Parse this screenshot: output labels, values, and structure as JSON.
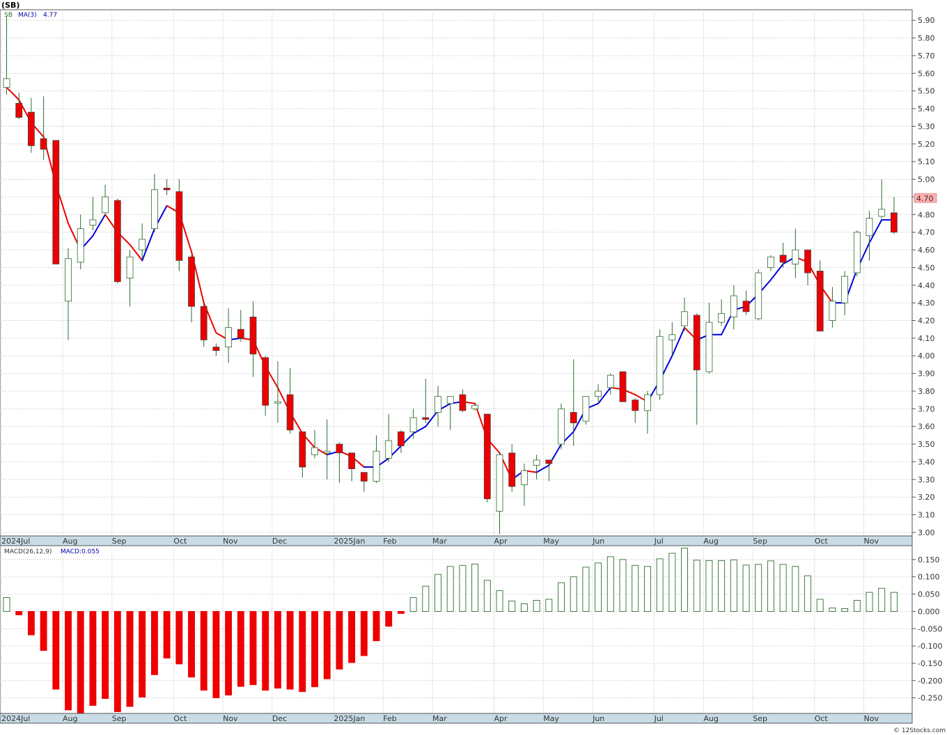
{
  "header": {
    "symbol": "(SB)",
    "legend_symbol": "SB",
    "legend_ma_label": "MA(3)",
    "legend_ma_value": "4.77",
    "last_price_tag": "4.70",
    "macd_label": "MACD(26,12,9)",
    "macd_value_label": "MACD:0.055",
    "footer": "© 12Stocks.com"
  },
  "colors": {
    "up_candle_fill": "#ffffff",
    "up_candle_border": "#2e6b2e",
    "down_candle_fill": "#ee0000",
    "ma_rising": "#0000dd",
    "ma_falling": "#ee0000",
    "macd_positive": "#2e6b2e",
    "macd_negative": "#ee0000",
    "price_tag_bg": "#ffb0b0",
    "axis_bar": "#c8dce6"
  },
  "chart_data": [
    {
      "type": "candlestick",
      "title": "(SB)",
      "ylim": [
        2.98,
        5.96
      ],
      "y_ticks": [
        "3.00",
        "3.10",
        "3.20",
        "3.30",
        "3.40",
        "3.50",
        "3.60",
        "3.70",
        "3.80",
        "3.90",
        "4.00",
        "4.10",
        "4.20",
        "4.30",
        "4.40",
        "4.50",
        "4.60",
        "4.70",
        "4.80",
        "4.90",
        "5.00",
        "5.10",
        "5.20",
        "5.30",
        "5.40",
        "5.50",
        "5.60",
        "5.70",
        "5.80",
        "5.90"
      ],
      "x_labels": [
        {
          "label": "2024Jul",
          "week": 0
        },
        {
          "label": "Aug",
          "week": 5
        },
        {
          "label": "Sep",
          "week": 9
        },
        {
          "label": "Oct",
          "week": 14
        },
        {
          "label": "Nov",
          "week": 18
        },
        {
          "label": "Dec",
          "week": 22
        },
        {
          "label": "2025Jan",
          "week": 27
        },
        {
          "label": "Feb",
          "week": 31
        },
        {
          "label": "Mar",
          "week": 35
        },
        {
          "label": "Apr",
          "week": 40
        },
        {
          "label": "May",
          "week": 44
        },
        {
          "label": "Jun",
          "week": 48
        },
        {
          "label": "Jul",
          "week": 53
        },
        {
          "label": "Aug",
          "week": 57
        },
        {
          "label": "Sep",
          "week": 61
        },
        {
          "label": "Oct",
          "week": 66
        },
        {
          "label": "Nov",
          "week": 70
        }
      ],
      "candles": [
        {
          "o": 5.52,
          "h": 5.92,
          "l": 5.48,
          "c": 5.57
        },
        {
          "o": 5.43,
          "h": 5.49,
          "l": 5.34,
          "c": 5.35
        },
        {
          "o": 5.38,
          "h": 5.46,
          "l": 5.15,
          "c": 5.19
        },
        {
          "o": 5.23,
          "h": 5.47,
          "l": 5.11,
          "c": 5.17
        },
        {
          "o": 5.22,
          "h": 5.22,
          "l": 4.52,
          "c": 4.52
        },
        {
          "o": 4.31,
          "h": 4.61,
          "l": 4.09,
          "c": 4.55
        },
        {
          "o": 4.53,
          "h": 4.8,
          "l": 4.49,
          "c": 4.72
        },
        {
          "o": 4.74,
          "h": 4.9,
          "l": 4.71,
          "c": 4.77
        },
        {
          "o": 4.81,
          "h": 4.97,
          "l": 4.8,
          "c": 4.9
        },
        {
          "o": 4.88,
          "h": 4.89,
          "l": 4.41,
          "c": 4.42
        },
        {
          "o": 4.44,
          "h": 4.6,
          "l": 4.28,
          "c": 4.56
        },
        {
          "o": 4.6,
          "h": 4.75,
          "l": 4.55,
          "c": 4.66
        },
        {
          "o": 4.72,
          "h": 5.03,
          "l": 4.7,
          "c": 4.94
        },
        {
          "o": 4.95,
          "h": 5.0,
          "l": 4.91,
          "c": 4.94
        },
        {
          "o": 4.93,
          "h": 5.0,
          "l": 4.48,
          "c": 4.54
        },
        {
          "o": 4.56,
          "h": 4.57,
          "l": 4.19,
          "c": 4.28
        },
        {
          "o": 4.28,
          "h": 4.3,
          "l": 4.05,
          "c": 4.09
        },
        {
          "o": 4.05,
          "h": 4.07,
          "l": 4.0,
          "c": 4.03
        },
        {
          "o": 4.05,
          "h": 4.27,
          "l": 3.96,
          "c": 4.16
        },
        {
          "o": 4.15,
          "h": 4.26,
          "l": 4.08,
          "c": 4.1
        },
        {
          "o": 4.22,
          "h": 4.31,
          "l": 3.88,
          "c": 4.01
        },
        {
          "o": 3.99,
          "h": 4.0,
          "l": 3.66,
          "c": 3.72
        },
        {
          "o": 3.74,
          "h": 3.97,
          "l": 3.62,
          "c": 3.74
        },
        {
          "o": 3.78,
          "h": 3.93,
          "l": 3.56,
          "c": 3.58
        },
        {
          "o": 3.57,
          "h": 3.57,
          "l": 3.31,
          "c": 3.37
        },
        {
          "o": 3.44,
          "h": 3.58,
          "l": 3.42,
          "c": 3.48
        },
        {
          "o": 3.45,
          "h": 3.64,
          "l": 3.3,
          "c": 3.46
        },
        {
          "o": 3.5,
          "h": 3.51,
          "l": 3.28,
          "c": 3.45
        },
        {
          "o": 3.45,
          "h": 3.45,
          "l": 3.29,
          "c": 3.36
        },
        {
          "o": 3.34,
          "h": 3.34,
          "l": 3.23,
          "c": 3.29
        },
        {
          "o": 3.29,
          "h": 3.55,
          "l": 3.28,
          "c": 3.46
        },
        {
          "o": 3.42,
          "h": 3.67,
          "l": 3.4,
          "c": 3.52
        },
        {
          "o": 3.57,
          "h": 3.58,
          "l": 3.45,
          "c": 3.49
        },
        {
          "o": 3.57,
          "h": 3.7,
          "l": 3.53,
          "c": 3.65
        },
        {
          "o": 3.65,
          "h": 3.87,
          "l": 3.62,
          "c": 3.64
        },
        {
          "o": 3.68,
          "h": 3.83,
          "l": 3.6,
          "c": 3.77
        },
        {
          "o": 3.73,
          "h": 3.77,
          "l": 3.58,
          "c": 3.77
        },
        {
          "o": 3.78,
          "h": 3.81,
          "l": 3.68,
          "c": 3.69
        },
        {
          "o": 3.7,
          "h": 3.73,
          "l": 3.69,
          "c": 3.72
        },
        {
          "o": 3.67,
          "h": 3.67,
          "l": 3.17,
          "c": 3.19
        },
        {
          "o": 3.12,
          "h": 3.45,
          "l": 2.99,
          "c": 3.44
        },
        {
          "o": 3.45,
          "h": 3.5,
          "l": 3.23,
          "c": 3.26
        },
        {
          "o": 3.27,
          "h": 3.39,
          "l": 3.15,
          "c": 3.35
        },
        {
          "o": 3.38,
          "h": 3.44,
          "l": 3.3,
          "c": 3.41
        },
        {
          "o": 3.41,
          "h": 3.41,
          "l": 3.29,
          "c": 3.39
        },
        {
          "o": 3.5,
          "h": 3.73,
          "l": 3.47,
          "c": 3.7
        },
        {
          "o": 3.68,
          "h": 3.98,
          "l": 3.49,
          "c": 3.62
        },
        {
          "o": 3.63,
          "h": 3.77,
          "l": 3.61,
          "c": 3.77
        },
        {
          "o": 3.77,
          "h": 3.84,
          "l": 3.74,
          "c": 3.8
        },
        {
          "o": 3.82,
          "h": 3.9,
          "l": 3.78,
          "c": 3.89
        },
        {
          "o": 3.91,
          "h": 3.91,
          "l": 3.74,
          "c": 3.74
        },
        {
          "o": 3.75,
          "h": 3.76,
          "l": 3.62,
          "c": 3.69
        },
        {
          "o": 3.69,
          "h": 3.8,
          "l": 3.56,
          "c": 3.78
        },
        {
          "o": 3.78,
          "h": 4.15,
          "l": 3.75,
          "c": 4.11
        },
        {
          "o": 4.09,
          "h": 4.19,
          "l": 4.0,
          "c": 4.12
        },
        {
          "o": 4.17,
          "h": 4.33,
          "l": 4.14,
          "c": 4.25
        },
        {
          "o": 4.23,
          "h": 4.24,
          "l": 3.61,
          "c": 3.92
        },
        {
          "o": 3.91,
          "h": 4.3,
          "l": 3.9,
          "c": 4.19
        },
        {
          "o": 4.19,
          "h": 4.32,
          "l": 4.17,
          "c": 4.24
        },
        {
          "o": 4.22,
          "h": 4.4,
          "l": 4.15,
          "c": 4.34
        },
        {
          "o": 4.31,
          "h": 4.37,
          "l": 4.23,
          "c": 4.25
        },
        {
          "o": 4.21,
          "h": 4.49,
          "l": 4.2,
          "c": 4.47
        },
        {
          "o": 4.5,
          "h": 4.57,
          "l": 4.48,
          "c": 4.56
        },
        {
          "o": 4.57,
          "h": 4.64,
          "l": 4.5,
          "c": 4.53
        },
        {
          "o": 4.52,
          "h": 4.72,
          "l": 4.44,
          "c": 4.6
        },
        {
          "o": 4.6,
          "h": 4.6,
          "l": 4.4,
          "c": 4.47
        },
        {
          "o": 4.48,
          "h": 4.54,
          "l": 4.14,
          "c": 4.14
        },
        {
          "o": 4.2,
          "h": 4.39,
          "l": 4.16,
          "c": 4.31
        },
        {
          "o": 4.3,
          "h": 4.48,
          "l": 4.23,
          "c": 4.45
        },
        {
          "o": 4.47,
          "h": 4.71,
          "l": 4.45,
          "c": 4.7
        },
        {
          "o": 4.68,
          "h": 4.82,
          "l": 4.54,
          "c": 4.78
        },
        {
          "o": 4.79,
          "h": 5.0,
          "l": 4.78,
          "c": 4.83
        },
        {
          "o": 4.81,
          "h": 4.9,
          "l": 4.69,
          "c": 4.7
        }
      ],
      "ma3": [
        5.52,
        5.45,
        5.32,
        5.24,
        4.97,
        4.75,
        4.6,
        4.68,
        4.8,
        4.7,
        4.63,
        4.54,
        4.72,
        4.85,
        4.81,
        4.59,
        4.3,
        4.13,
        4.09,
        4.1,
        4.09,
        3.94,
        3.82,
        3.68,
        3.56,
        3.48,
        3.44,
        3.46,
        3.43,
        3.37,
        3.37,
        3.42,
        3.49,
        3.56,
        3.6,
        3.69,
        3.73,
        3.74,
        3.73,
        3.53,
        3.45,
        3.3,
        3.35,
        3.34,
        3.38,
        3.5,
        3.57,
        3.7,
        3.73,
        3.82,
        3.81,
        3.78,
        3.74,
        3.86,
        4.0,
        4.16,
        4.09,
        4.12,
        4.12,
        4.26,
        4.28,
        4.35,
        4.43,
        4.52,
        4.56,
        4.53,
        4.4,
        4.3,
        4.3,
        4.49,
        4.64,
        4.77,
        4.77
      ]
    },
    {
      "type": "bar",
      "title": "MACD(26,12,9)",
      "ylim": [
        -0.295,
        0.19
      ],
      "y_ticks": [
        "0.150",
        "0.100",
        "0.050",
        "0.000",
        "-0.050",
        "-0.100",
        "-0.150",
        "-0.200",
        "-0.250"
      ],
      "values": [
        0.04,
        -0.01,
        -0.068,
        -0.113,
        -0.225,
        -0.285,
        -0.295,
        -0.272,
        -0.252,
        -0.29,
        -0.275,
        -0.248,
        -0.183,
        -0.135,
        -0.152,
        -0.19,
        -0.228,
        -0.25,
        -0.242,
        -0.217,
        -0.212,
        -0.228,
        -0.222,
        -0.225,
        -0.232,
        -0.218,
        -0.195,
        -0.167,
        -0.148,
        -0.128,
        -0.085,
        -0.043,
        -0.006,
        0.04,
        0.073,
        0.107,
        0.13,
        0.133,
        0.137,
        0.09,
        0.06,
        0.03,
        0.022,
        0.032,
        0.035,
        0.083,
        0.1,
        0.128,
        0.14,
        0.158,
        0.15,
        0.133,
        0.13,
        0.152,
        0.168,
        0.183,
        0.148,
        0.147,
        0.147,
        0.149,
        0.134,
        0.136,
        0.146,
        0.136,
        0.13,
        0.103,
        0.035,
        0.01,
        0.008,
        0.032,
        0.055,
        0.067,
        0.055
      ]
    }
  ]
}
